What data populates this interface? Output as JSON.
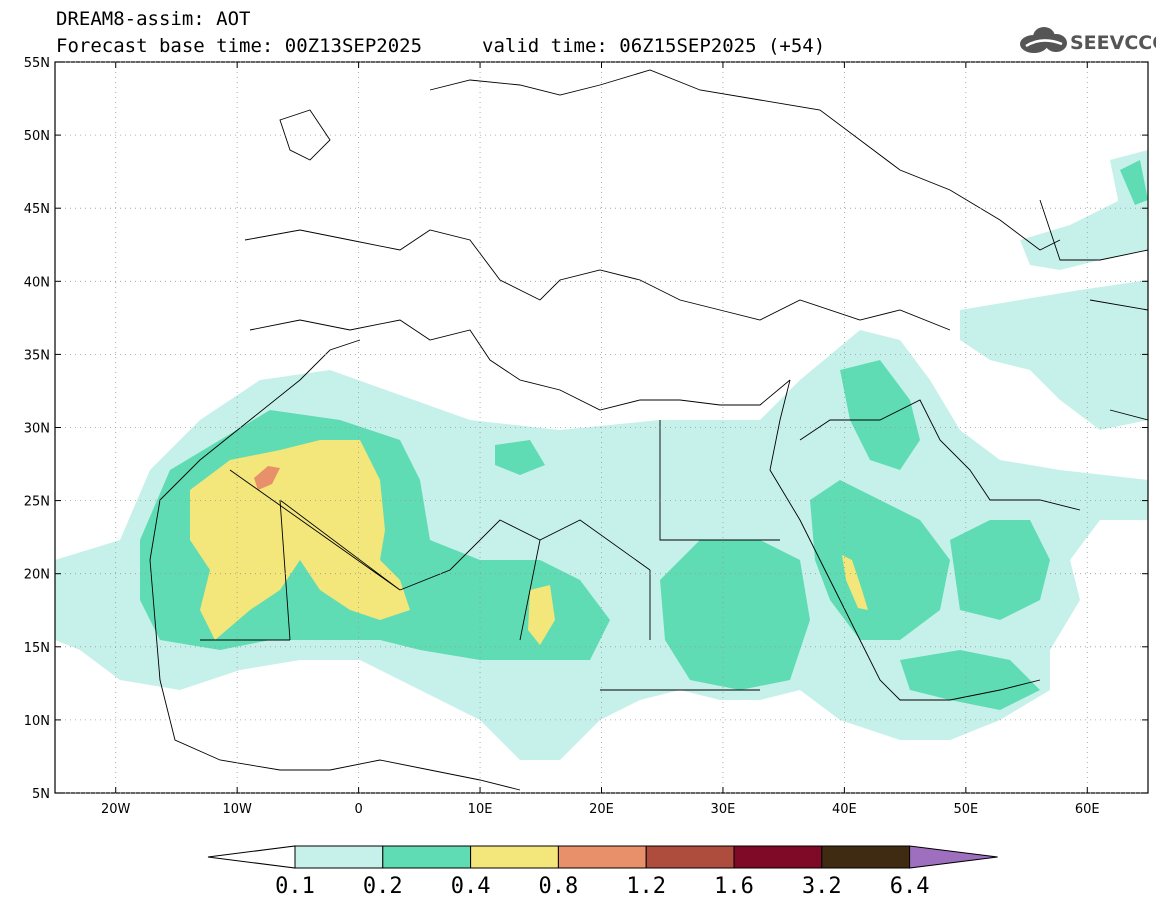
{
  "header": {
    "title_line1": "DREAM8-assim: AOT",
    "base_time": "Forecast base time: 00Z13SEP2025",
    "valid_time": "valid time: 06Z15SEP2025 (+54)",
    "logo_text": "SEEVCCC",
    "logo_icon": "cloud-icon"
  },
  "map": {
    "lon_range": [
      -25,
      65
    ],
    "lat_range": [
      5,
      55
    ],
    "lon_ticks": [
      {
        "v": -20,
        "label": "20W"
      },
      {
        "v": -10,
        "label": "10W"
      },
      {
        "v": 0,
        "label": "0"
      },
      {
        "v": 10,
        "label": "10E"
      },
      {
        "v": 20,
        "label": "20E"
      },
      {
        "v": 30,
        "label": "30E"
      },
      {
        "v": 40,
        "label": "40E"
      },
      {
        "v": 50,
        "label": "50E"
      },
      {
        "v": 60,
        "label": "60E"
      }
    ],
    "lat_ticks": [
      {
        "v": 5,
        "label": "5N"
      },
      {
        "v": 10,
        "label": "10N"
      },
      {
        "v": 15,
        "label": "15N"
      },
      {
        "v": 20,
        "label": "20N"
      },
      {
        "v": 25,
        "label": "25N"
      },
      {
        "v": 30,
        "label": "30N"
      },
      {
        "v": 35,
        "label": "35N"
      },
      {
        "v": 40,
        "label": "40N"
      },
      {
        "v": 45,
        "label": "45N"
      },
      {
        "v": 50,
        "label": "50N"
      },
      {
        "v": 55,
        "label": "55N"
      }
    ]
  },
  "colorbar": {
    "levels": [
      "0.1",
      "0.2",
      "0.4",
      "0.8",
      "1.2",
      "1.6",
      "3.2",
      "6.4"
    ],
    "colors": [
      "#ffffff",
      "#c6f1ea",
      "#5fdcb4",
      "#f3e67a",
      "#e8906a",
      "#ae4d3e",
      "#7f0a27",
      "#3f2b12",
      "#9e6fbf"
    ]
  }
}
